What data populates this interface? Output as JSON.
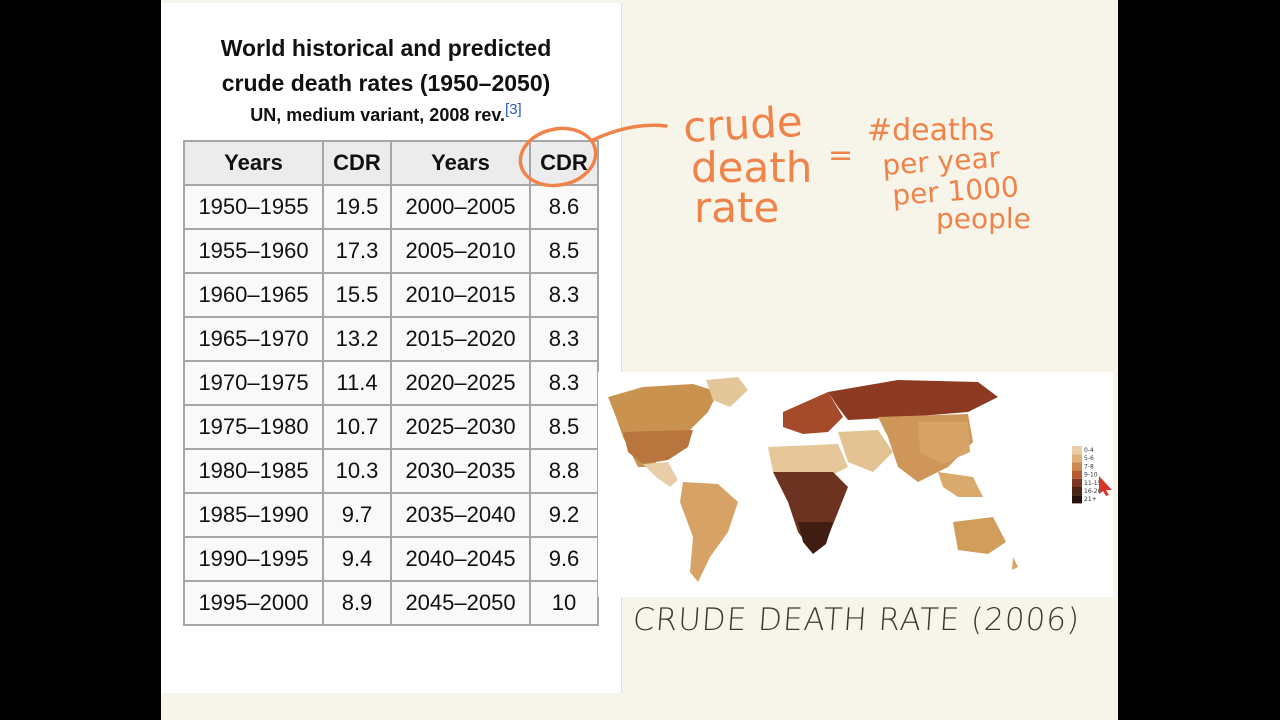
{
  "table": {
    "title_line1": "World historical and predicted",
    "title_line2": "crude death rates (1950–2050)",
    "subtitle": "UN, medium variant, 2008 rev.",
    "reference": "[3]",
    "headers": [
      "Years",
      "CDR",
      "Years",
      "CDR"
    ],
    "rows": [
      [
        "1950–1955",
        "19.5",
        "2000–2005",
        "8.6"
      ],
      [
        "1955–1960",
        "17.3",
        "2005–2010",
        "8.5"
      ],
      [
        "1960–1965",
        "15.5",
        "2010–2015",
        "8.3"
      ],
      [
        "1965–1970",
        "13.2",
        "2015–2020",
        "8.3"
      ],
      [
        "1970–1975",
        "11.4",
        "2020–2025",
        "8.3"
      ],
      [
        "1975–1980",
        "10.7",
        "2025–2030",
        "8.5"
      ],
      [
        "1980–1985",
        "10.3",
        "2030–2035",
        "8.8"
      ],
      [
        "1985–1990",
        "9.7",
        "2035–2040",
        "9.2"
      ],
      [
        "1990–1995",
        "9.4",
        "2040–2045",
        "9.6"
      ],
      [
        "1995–2000",
        "8.9",
        "2045–2050",
        "10"
      ]
    ]
  },
  "annotation": {
    "term_line1": "crude",
    "term_line2": "death",
    "term_line3": "rate",
    "equals": "=",
    "def_line1": "#deaths",
    "def_line2": "per year",
    "def_line3": "per 1000",
    "def_line4": "people",
    "ink_color": "#f0834a"
  },
  "map": {
    "caption": "CRUDE DEATH RATE (2006)",
    "legend": [
      "0-4",
      "5-6",
      "7-8",
      "9-10",
      "11-15",
      "16-20",
      "21+"
    ],
    "legend_colors": [
      "#e9cda4",
      "#deb07a",
      "#cc8a4f",
      "#b35a31",
      "#7e3720",
      "#4c2315",
      "#261009"
    ]
  }
}
